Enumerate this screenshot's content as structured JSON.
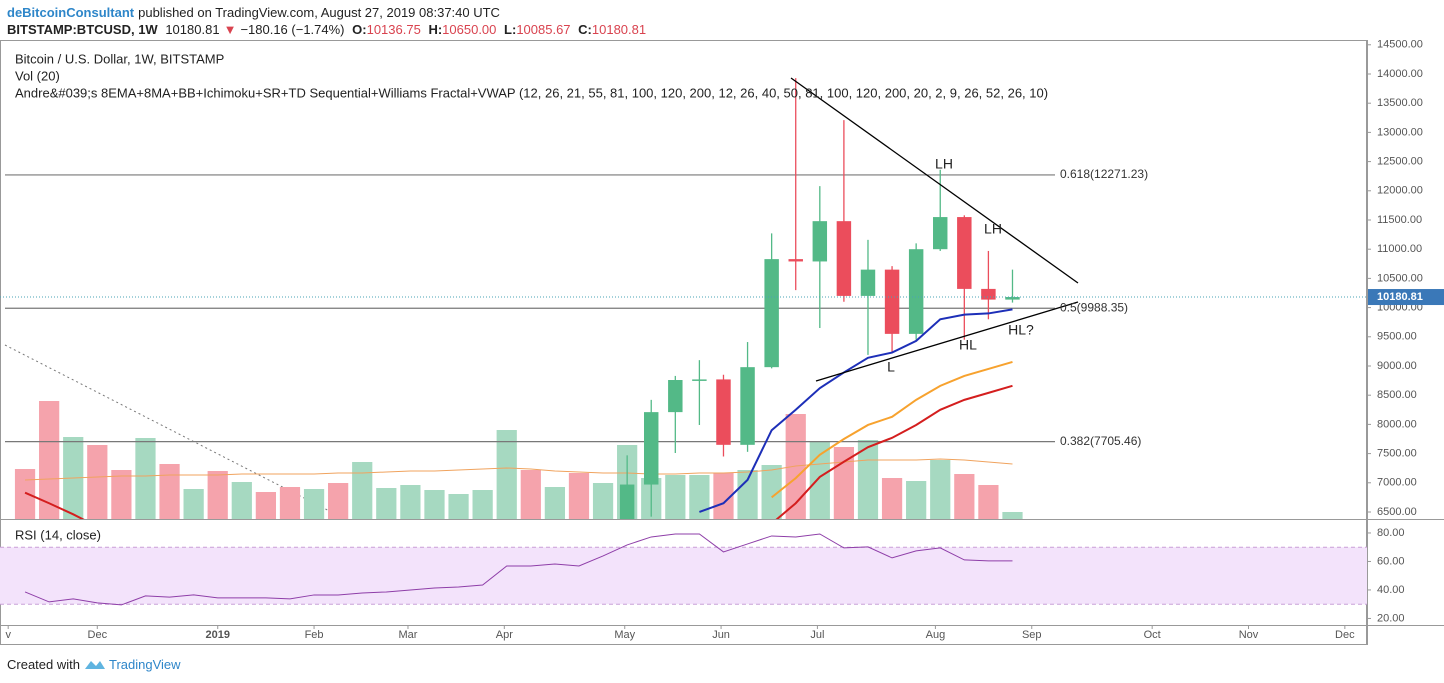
{
  "header": {
    "author": "deBitcoinConsultant",
    "published": "published on TradingView.com, August 27, 2019 08:37:40 UTC",
    "symbol": "BITSTAMP:BTCUSD, 1W",
    "last": "10180.81",
    "arrow": "▼",
    "change": "−180.16 (−1.74%)",
    "o_label": "O:",
    "o": "10136.75",
    "h_label": "H:",
    "h": "10650.00",
    "l_label": "L:",
    "l": "10085.67",
    "c_label": "C:",
    "c": "10180.81"
  },
  "footer": {
    "created": "Created with",
    "brand": "TradingView"
  },
  "chart_data": {
    "type": "candlestick",
    "title": "Bitcoin / U.S. Dollar, 1W, BITSTAMP",
    "volume_label": "Vol (20)",
    "indicator_label": "Andre&#039;s 8EMA+8MA+BB+Ichimoku+SR+TD Sequential+Williams Fractal+VWAP (12, 26, 21, 55, 81, 100, 120, 200, 12, 26, 40, 50, 81, 100, 120, 200, 20, 2, 9, 26, 52, 26, 10)",
    "categories": [
      null,
      null,
      null,
      null,
      null,
      null,
      null,
      null,
      null,
      null,
      null,
      null,
      null,
      null,
      null,
      null,
      null,
      null,
      null,
      null,
      null,
      null,
      null,
      null,
      null,
      null,
      null,
      null,
      null,
      null,
      null,
      null,
      null,
      null,
      null,
      null,
      null,
      null,
      null,
      null,
      null,
      null
    ],
    "xlim": [
      -1.04,
      55.72
    ],
    "xticks": [
      {
        "value": -0.7,
        "label": "v"
      },
      {
        "value": 3.0,
        "label": "Dec"
      },
      {
        "value": 8.0,
        "label": "2019"
      },
      {
        "value": 12.0,
        "label": "Feb"
      },
      {
        "value": 15.9,
        "label": "Mar"
      },
      {
        "value": 19.9,
        "label": "Apr"
      },
      {
        "value": 24.9,
        "label": "May"
      },
      {
        "value": 28.9,
        "label": "Jun"
      },
      {
        "value": 32.9,
        "label": "Jul"
      },
      {
        "value": 37.8,
        "label": "Aug"
      },
      {
        "value": 41.8,
        "label": "Sep"
      },
      {
        "value": 46.8,
        "label": "Oct"
      },
      {
        "value": 50.8,
        "label": "Nov"
      },
      {
        "value": 54.8,
        "label": "Dec"
      }
    ],
    "ylim": [
      6380,
      14582
    ],
    "yticks": [
      {
        "value": 6500,
        "label": "6500.00"
      },
      {
        "value": 7000,
        "label": "7000.00"
      },
      {
        "value": 7500,
        "label": "7500.00"
      },
      {
        "value": 8000,
        "label": "8000.00"
      },
      {
        "value": 8500,
        "label": "8500.00"
      },
      {
        "value": 9000,
        "label": "9000.00"
      },
      {
        "value": 9500,
        "label": "9500.00"
      },
      {
        "value": 10000,
        "label": "10000.00"
      },
      {
        "value": 10500,
        "label": "10500.00"
      },
      {
        "value": 11000,
        "label": "11000.00"
      },
      {
        "value": 11500,
        "label": "11500.00"
      },
      {
        "value": 12000,
        "label": "12000.00"
      },
      {
        "value": 12500,
        "label": "12500.00"
      },
      {
        "value": 13000,
        "label": "13000.00"
      },
      {
        "value": 13500,
        "label": "13500.00"
      },
      {
        "value": 14000,
        "label": "14000.00"
      },
      {
        "value": 14500,
        "label": "14500.00"
      }
    ],
    "grid": false,
    "up_color": "#53b987",
    "down_color": "#eb4d5c",
    "candles": {
      "open": [
        null,
        null,
        null,
        null,
        null,
        null,
        null,
        null,
        null,
        null,
        null,
        null,
        null,
        null,
        null,
        null,
        null,
        null,
        null,
        null,
        null,
        null,
        null,
        null,
        null,
        5750,
        6970,
        8210,
        8760,
        8770,
        7650,
        8980,
        10830,
        10790,
        11480,
        10200,
        10650,
        9550,
        11000,
        11550,
        10320,
        10136.75
      ],
      "high": [
        null,
        null,
        null,
        null,
        null,
        null,
        null,
        null,
        null,
        null,
        null,
        null,
        null,
        null,
        null,
        null,
        null,
        null,
        null,
        null,
        null,
        null,
        null,
        null,
        null,
        7470,
        8420,
        8830,
        9100,
        8850,
        9410,
        11270,
        13930,
        12080,
        13210,
        11160,
        10710,
        11100,
        12360,
        11580,
        10970,
        10650
      ],
      "low": [
        null,
        null,
        null,
        null,
        null,
        null,
        null,
        null,
        null,
        null,
        null,
        null,
        null,
        null,
        null,
        null,
        null,
        null,
        null,
        null,
        null,
        null,
        null,
        null,
        null,
        5700,
        6420,
        7510,
        7990,
        7450,
        7530,
        8960,
        10300,
        9650,
        10100,
        9190,
        9240,
        9450,
        10970,
        9450,
        9800,
        10085.67
      ],
      "close": [
        null,
        null,
        null,
        null,
        null,
        null,
        null,
        null,
        null,
        null,
        null,
        null,
        null,
        null,
        null,
        null,
        null,
        null,
        null,
        null,
        null,
        null,
        null,
        null,
        null,
        6970,
        8210,
        8760,
        8770,
        7650,
        8980,
        10830,
        10790,
        11480,
        10200,
        10650,
        9550,
        11000,
        11550,
        10320,
        10136.75,
        10180.81
      ]
    },
    "series": [
      {
        "color": "#1d2fb8",
        "values": [
          null,
          null,
          null,
          null,
          null,
          null,
          null,
          null,
          null,
          null,
          null,
          null,
          null,
          null,
          null,
          null,
          null,
          null,
          null,
          null,
          null,
          null,
          null,
          null,
          null,
          null,
          null,
          null,
          6500,
          6650,
          7050,
          7900,
          8250,
          8620,
          8890,
          9140,
          9230,
          9430,
          9800,
          9880,
          9900,
          9970
        ]
      },
      {
        "color": "#f7a22e",
        "values": [
          null,
          null,
          null,
          null,
          null,
          null,
          null,
          null,
          null,
          null,
          null,
          null,
          null,
          null,
          null,
          null,
          null,
          null,
          null,
          null,
          null,
          null,
          null,
          null,
          null,
          null,
          null,
          null,
          null,
          null,
          null,
          6750,
          7080,
          7480,
          7750,
          7990,
          8130,
          8420,
          8660,
          8830,
          8950,
          9070
        ]
      },
      {
        "color": "#d41e1e",
        "values": [
          6830,
          6650,
          6460,
          6250,
          null,
          null,
          null,
          null,
          null,
          null,
          null,
          null,
          null,
          null,
          null,
          null,
          null,
          null,
          null,
          null,
          null,
          null,
          null,
          null,
          null,
          null,
          null,
          null,
          null,
          null,
          null,
          6300,
          6650,
          7100,
          7360,
          7610,
          7770,
          7990,
          8250,
          8420,
          8540,
          8660
        ]
      }
    ],
    "fib_levels": [
      {
        "value": 12271.23,
        "label": "0.618(12271.23)"
      },
      {
        "value": 9988.35,
        "label": "0.5(9988.35)"
      },
      {
        "value": 7705.46,
        "label": "0.382(7705.46)"
      }
    ],
    "annotations": [
      "LH",
      "LH",
      "HL",
      "L",
      "HL?"
    ],
    "volume": {
      "ylim": [
        0,
        140
      ],
      "values": [
        50,
        118,
        82,
        74,
        49,
        81,
        55,
        30,
        48,
        37,
        27,
        32,
        30,
        36,
        57,
        31,
        34,
        29,
        25,
        29,
        89,
        49,
        32,
        46,
        36,
        74,
        41,
        44,
        44,
        46,
        49,
        54,
        105,
        77,
        72,
        79,
        41,
        38,
        59,
        45,
        34,
        7
      ],
      "colors": [
        "#f5a3ac",
        "#f5a3ac",
        "#a6d9c1",
        "#f5a3ac",
        "#f5a3ac",
        "#a6d9c1",
        "#f5a3ac",
        "#a6d9c1",
        "#f5a3ac",
        "#a6d9c1",
        "#f5a3ac",
        "#f5a3ac",
        "#a6d9c1",
        "#f5a3ac",
        "#a6d9c1",
        "#a6d9c1",
        "#a6d9c1",
        "#a6d9c1",
        "#a6d9c1",
        "#a6d9c1",
        "#a6d9c1",
        "#f5a3ac",
        "#a6d9c1",
        "#f5a3ac",
        "#a6d9c1",
        "#a6d9c1",
        "#a6d9c1",
        "#a6d9c1",
        "#a6d9c1",
        "#f5a3ac",
        "#a6d9c1",
        "#a6d9c1",
        "#f5a3ac",
        "#a6d9c1",
        "#f5a3ac",
        "#a6d9c1",
        "#f5a3ac",
        "#a6d9c1",
        "#a6d9c1",
        "#f5a3ac",
        "#f5a3ac",
        "#a6d9c1"
      ],
      "ma_color": "#f0a35e",
      "ma": [
        39,
        40,
        41,
        42,
        43,
        43,
        44,
        44,
        44,
        45,
        45,
        45,
        45,
        46,
        46,
        47,
        48,
        48,
        49,
        50,
        51,
        50,
        48,
        47,
        46,
        46,
        45,
        45,
        46,
        46,
        47,
        49,
        53,
        55,
        57,
        59,
        59,
        59,
        60,
        59,
        57,
        55
      ]
    },
    "rsi": {
      "label": "RSI (14, close)",
      "color": "#8e3ea8",
      "ylim": [
        15.4,
        89.1
      ],
      "yticks": [
        {
          "value": 80,
          "label": "80.00"
        },
        {
          "value": 60,
          "label": "60.00"
        },
        {
          "value": 40,
          "label": "40.00"
        },
        {
          "value": 20,
          "label": "20.00"
        }
      ],
      "band": [
        30,
        70
      ],
      "values": [
        38.6,
        31.6,
        33.7,
        30.9,
        29.5,
        35.8,
        35,
        36.5,
        34.4,
        34.4,
        34.4,
        33.7,
        36.5,
        36.5,
        37.9,
        38.6,
        40,
        41.4,
        42.1,
        43.5,
        56.8,
        56.8,
        58.2,
        56.8,
        63.9,
        71.6,
        77.2,
        79.3,
        79.3,
        66.7,
        72.3,
        77.9,
        77.2,
        79.3,
        69.5,
        70.2,
        62.5,
        67.4,
        69.5,
        61.1,
        60.4,
        60.4
      ]
    }
  }
}
